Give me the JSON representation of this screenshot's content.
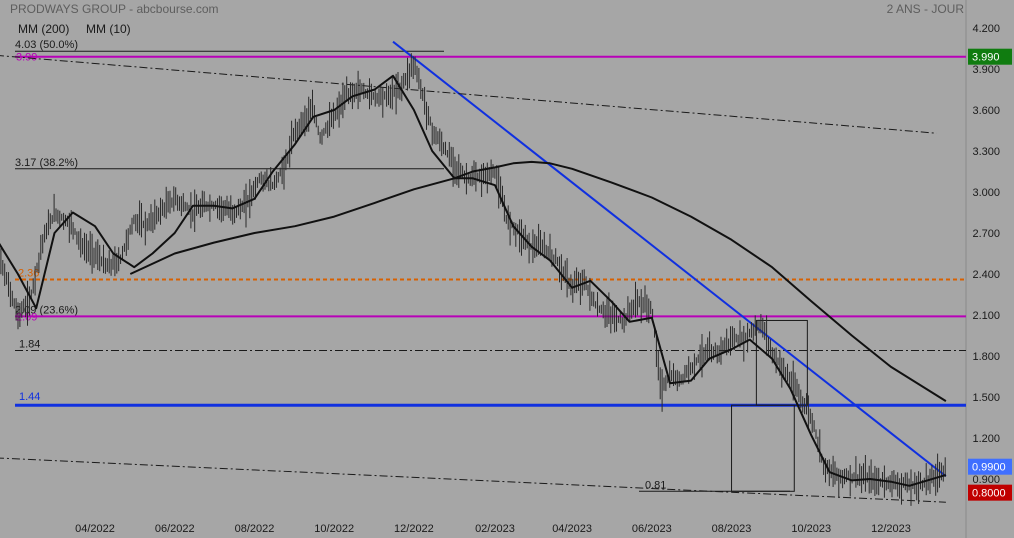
{
  "header": {
    "title": "PRODWAYS GROUP - abcbourse.com",
    "period": "2 ANS - JOUR",
    "indicators": [
      "MM (200)",
      "MM (10)"
    ]
  },
  "chart_data": {
    "type": "line",
    "style": "ohlc-bars",
    "ylim": [
      0.75,
      4.25
    ],
    "y_ticks": [
      "4.200",
      "3.900",
      "3.600",
      "3.300",
      "3.000",
      "2.700",
      "2.400",
      "2.100",
      "1.800",
      "1.500",
      "1.200",
      "0.900"
    ],
    "x_ticks": [
      "04/2022",
      "06/2022",
      "08/2022",
      "10/2022",
      "12/2022",
      "02/2023",
      "04/2023",
      "06/2023",
      "08/2023",
      "10/2023",
      "12/2023"
    ],
    "price_badges": [
      {
        "label": "3.990",
        "value": 3.99,
        "color": "#107c10"
      },
      {
        "label": "0.9900",
        "value": 0.99,
        "color": "#3f6fff"
      },
      {
        "label": "0.8000",
        "value": 0.8,
        "color": "#c00000"
      }
    ],
    "levels": [
      {
        "label": "4.03",
        "extra": "(50.0%)",
        "value": 4.03,
        "color": "#1a1a1a",
        "kind": "fibo"
      },
      {
        "label": "3.99",
        "value": 3.99,
        "color": "#b800b8",
        "kind": "line"
      },
      {
        "label": "3.17",
        "extra": "(38.2%)",
        "value": 3.17,
        "color": "#1a1a1a",
        "kind": "fibo"
      },
      {
        "label": "2.36",
        "value": 2.36,
        "color": "#d86000",
        "kind": "dotted"
      },
      {
        "label": "2.09",
        "extra": "(23.6%)",
        "value": 2.09,
        "color": "#1a1a1a",
        "kind": "fibo"
      },
      {
        "label": "2.09",
        "value": 2.09,
        "color": "#b800b8",
        "kind": "line"
      },
      {
        "label": "1.84",
        "value": 1.84,
        "color": "#1a1a1a",
        "kind": "dashdot"
      },
      {
        "label": "1.44",
        "value": 1.44,
        "color": "#1030e0",
        "kind": "thick"
      },
      {
        "label": "0.81",
        "value": 0.81,
        "color": "#1a1a1a",
        "kind": "short"
      }
    ],
    "series": [
      {
        "name": "MM (200)",
        "x": [
          "2022-04-28",
          "2022-06-01",
          "2022-07-01",
          "2022-08-01",
          "2022-09-01",
          "2022-10-01",
          "2022-11-01",
          "2022-12-01",
          "2023-01-01",
          "2023-01-15",
          "2023-02-01",
          "2023-02-15",
          "2023-03-01",
          "2023-03-15",
          "2023-04-01",
          "2023-05-01",
          "2023-06-01",
          "2023-07-01",
          "2023-08-01",
          "2023-09-01",
          "2023-10-01",
          "2023-11-01",
          "2023-12-01",
          "2024-01-12"
        ],
        "values": [
          2.4,
          2.55,
          2.63,
          2.7,
          2.75,
          2.82,
          2.92,
          3.02,
          3.1,
          3.15,
          3.18,
          3.21,
          3.22,
          3.21,
          3.17,
          3.07,
          2.96,
          2.82,
          2.65,
          2.45,
          2.2,
          1.95,
          1.72,
          1.47
        ]
      },
      {
        "name": "MM (10)",
        "x": [
          "2022-01-03",
          "2022-02-01",
          "2022-02-15",
          "2022-03-01",
          "2022-03-15",
          "2022-04-01",
          "2022-04-15",
          "2022-05-01",
          "2022-05-15",
          "2022-06-01",
          "2022-06-15",
          "2022-07-01",
          "2022-07-15",
          "2022-08-01",
          "2022-08-15",
          "2022-09-01",
          "2022-09-15",
          "2022-10-01",
          "2022-10-15",
          "2022-11-01",
          "2022-11-15",
          "2022-12-01",
          "2022-12-15",
          "2023-01-01",
          "2023-01-15",
          "2023-02-01",
          "2023-02-15",
          "2023-03-01",
          "2023-03-15",
          "2023-04-01",
          "2023-04-15",
          "2023-05-01",
          "2023-05-15",
          "2023-06-01",
          "2023-06-15",
          "2023-07-01",
          "2023-07-15",
          "2023-08-01",
          "2023-08-15",
          "2023-09-01",
          "2023-09-15",
          "2023-10-01",
          "2023-10-15",
          "2023-11-01",
          "2023-11-15",
          "2023-12-01",
          "2023-12-15",
          "2024-01-12"
        ],
        "values": [
          2.85,
          2.4,
          2.15,
          2.7,
          2.85,
          2.75,
          2.55,
          2.45,
          2.55,
          2.7,
          2.9,
          2.9,
          2.88,
          2.95,
          3.15,
          3.35,
          3.55,
          3.6,
          3.7,
          3.75,
          3.85,
          3.6,
          3.3,
          3.1,
          3.1,
          3.05,
          2.75,
          2.6,
          2.5,
          2.3,
          2.35,
          2.2,
          2.05,
          2.08,
          1.6,
          1.62,
          1.78,
          1.85,
          1.92,
          1.78,
          1.56,
          1.22,
          0.95,
          0.89,
          0.9,
          0.88,
          0.85,
          0.93
        ]
      },
      {
        "name": "Prix",
        "x": [
          "2022-01-03",
          "2022-01-10",
          "2022-01-20",
          "2022-02-01",
          "2022-02-10",
          "2022-02-20",
          "2022-03-01",
          "2022-03-08",
          "2022-03-15",
          "2022-03-22",
          "2022-04-01",
          "2022-04-10",
          "2022-04-20",
          "2022-05-01",
          "2022-05-10",
          "2022-05-20",
          "2022-06-01",
          "2022-06-08",
          "2022-06-15",
          "2022-06-25",
          "2022-07-05",
          "2022-07-15",
          "2022-07-25",
          "2022-08-05",
          "2022-08-15",
          "2022-08-25",
          "2022-09-01",
          "2022-09-10",
          "2022-09-15",
          "2022-09-20",
          "2022-10-01",
          "2022-10-10",
          "2022-10-20",
          "2022-11-01",
          "2022-11-10",
          "2022-11-20",
          "2022-12-01",
          "2022-12-08",
          "2022-12-15",
          "2022-12-22",
          "2023-01-01",
          "2023-01-10",
          "2023-01-20",
          "2023-02-01",
          "2023-02-10",
          "2023-02-20",
          "2023-03-01",
          "2023-03-10",
          "2023-03-20",
          "2023-04-01",
          "2023-04-10",
          "2023-04-20",
          "2023-05-01",
          "2023-05-10",
          "2023-05-20",
          "2023-06-01",
          "2023-06-08",
          "2023-06-15",
          "2023-06-22",
          "2023-07-01",
          "2023-07-10",
          "2023-07-20",
          "2023-08-01",
          "2023-08-10",
          "2023-08-20",
          "2023-08-25",
          "2023-09-01",
          "2023-09-10",
          "2023-09-20",
          "2023-10-01",
          "2023-10-05",
          "2023-10-10",
          "2023-10-20",
          "2023-11-01",
          "2023-11-10",
          "2023-11-20",
          "2023-12-01",
          "2023-12-10",
          "2023-12-20",
          "2024-01-01",
          "2024-01-12"
        ],
        "values": [
          2.85,
          2.75,
          2.45,
          2.1,
          2.2,
          2.65,
          2.85,
          2.8,
          2.75,
          2.6,
          2.55,
          2.45,
          2.5,
          2.8,
          2.75,
          2.85,
          2.95,
          2.9,
          2.85,
          2.9,
          2.9,
          2.85,
          2.9,
          3.1,
          3.05,
          3.2,
          3.45,
          3.55,
          3.6,
          3.4,
          3.55,
          3.7,
          3.75,
          3.7,
          3.7,
          3.75,
          3.95,
          3.7,
          3.45,
          3.35,
          3.2,
          3.1,
          3.1,
          3.15,
          2.8,
          2.7,
          2.6,
          2.6,
          2.5,
          2.3,
          2.35,
          2.15,
          2.1,
          2.05,
          2.2,
          2.15,
          1.55,
          1.65,
          1.62,
          1.72,
          1.82,
          1.82,
          1.92,
          1.92,
          2.02,
          2.02,
          1.82,
          1.7,
          1.55,
          1.35,
          1.22,
          1.02,
          0.92,
          0.92,
          0.91,
          0.88,
          0.88,
          0.86,
          0.85,
          0.9,
          0.98
        ]
      }
    ],
    "trendlines": [
      {
        "kind": "solid",
        "color": "#1030e0",
        "from": [
          "2022-11-15",
          4.1
        ],
        "to": [
          "2024-01-12",
          0.92
        ]
      },
      {
        "kind": "dashdot",
        "color": "#1a1a1a",
        "from": [
          "2022-01-03",
          4.01
        ],
        "to": [
          "2024-01-05",
          3.43
        ]
      },
      {
        "kind": "dashdot",
        "color": "#1a1a1a",
        "from": [
          "2022-01-03",
          1.06
        ],
        "to": [
          "2024-01-12",
          0.73
        ]
      }
    ],
    "boxes": [
      {
        "from": [
          "2023-08-20",
          2.06
        ],
        "to": [
          "2023-09-28",
          1.44
        ]
      },
      {
        "from": [
          "2023-08-01",
          1.44
        ],
        "to": [
          "2023-09-18",
          0.81
        ]
      }
    ],
    "grid": false
  }
}
